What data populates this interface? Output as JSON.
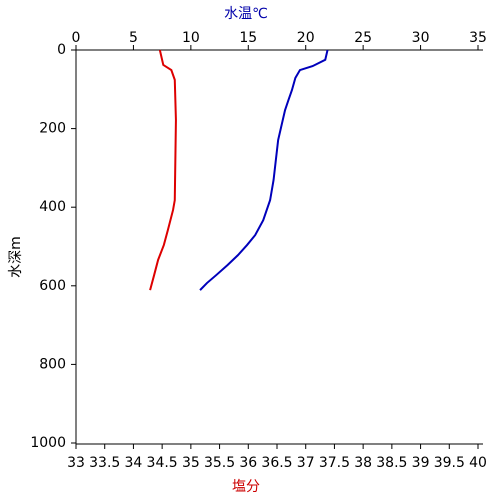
{
  "chart_data": {
    "type": "line",
    "x_label": "塩分",
    "x2_label": "水温℃",
    "y_label": "水深m",
    "x_label_color": "#cc0000",
    "x2_label_color": "#0000aa",
    "xlim": [
      33,
      40
    ],
    "xticks": [
      33,
      33.5,
      34,
      34.5,
      35,
      35.5,
      36,
      36.5,
      37,
      37.5,
      38,
      38.5,
      39,
      39.5,
      40
    ],
    "x2lim": [
      0,
      35
    ],
    "x2ticks": [
      0,
      5,
      10,
      15,
      20,
      25,
      30,
      35
    ],
    "ylim": [
      0,
      1000
    ],
    "yticks": [
      0,
      200,
      400,
      600,
      800,
      1000
    ],
    "y_inverted": true,
    "series": [
      {
        "color": "#0000bb",
        "axis": "x2",
        "values": [
          21.9,
          21.7,
          20.6,
          19.5,
          19.1,
          18.8,
          18.5,
          18.2,
          17.9,
          17.6,
          17.4,
          17.2,
          16.9,
          16.3,
          15.6,
          14.9,
          14.1,
          13.2,
          12.2,
          11.4,
          10.8
        ],
        "depth": [
          0,
          25,
          41,
          51,
          71,
          102,
          127,
          153,
          191,
          229,
          280,
          331,
          382,
          433,
          471,
          496,
          522,
          547,
          573,
          593,
          611
        ]
      },
      {
        "color": "#dd0000",
        "axis": "x",
        "values": [
          34.46,
          34.52,
          34.66,
          34.72,
          34.74,
          34.72,
          34.69,
          34.6,
          34.53,
          34.43,
          34.36,
          34.29
        ],
        "depth": [
          0,
          38,
          51,
          76,
          178,
          382,
          407,
          458,
          496,
          534,
          573,
          611
        ]
      }
    ]
  }
}
